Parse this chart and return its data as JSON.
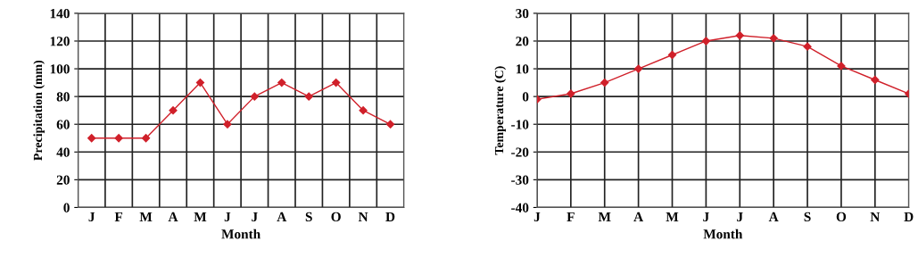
{
  "chart_data": [
    {
      "type": "line",
      "xlabel": "Month",
      "ylabel": "Precipitation (mm)",
      "categories": [
        "J",
        "F",
        "M",
        "A",
        "M",
        "J",
        "J",
        "A",
        "S",
        "O",
        "N",
        "D"
      ],
      "series": [
        {
          "color": "#d0202a",
          "values": [
            50,
            50,
            50,
            70,
            90,
            60,
            80,
            90,
            80,
            90,
            70,
            60
          ]
        }
      ],
      "ylim": [
        0,
        140
      ],
      "yticks": [
        0,
        20,
        40,
        60,
        80,
        100,
        120,
        140
      ],
      "grid": true,
      "marker": "diamond",
      "line_style": "solid"
    },
    {
      "type": "line",
      "xlabel": "Month",
      "ylabel": "Temperature (C)",
      "categories": [
        "J",
        "F",
        "M",
        "A",
        "M",
        "J",
        "J",
        "A",
        "S",
        "O",
        "N",
        "D"
      ],
      "series": [
        {
          "color": "#d0202a",
          "values": [
            -1,
            1,
            5,
            10,
            15,
            20,
            22,
            21,
            18,
            11,
            6,
            1
          ]
        }
      ],
      "ylim": [
        -40,
        30
      ],
      "yticks": [
        -40,
        -30,
        -20,
        -10,
        0,
        10,
        20,
        30
      ],
      "grid": true,
      "marker": "diamond",
      "line_style": "solid"
    }
  ]
}
